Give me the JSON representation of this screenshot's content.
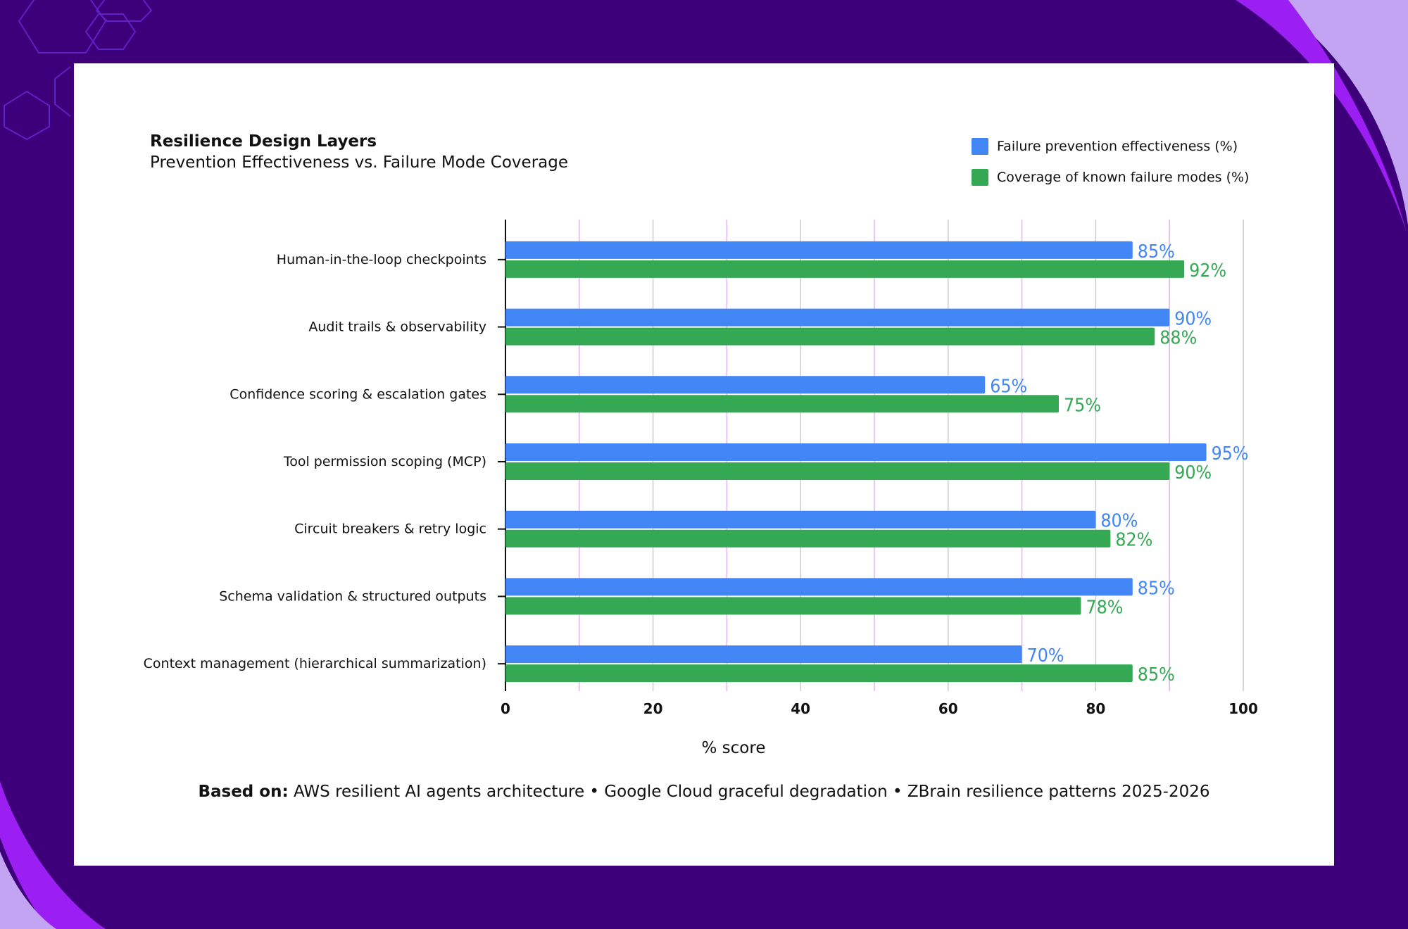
{
  "colors": {
    "background": "#3d007a",
    "accent_purple": "#9b1ff2",
    "accent_lavender": "#c3a4f2",
    "series_blue": "#4285f4",
    "series_green": "#34a853",
    "minor_grid": "#e4b3f0",
    "major_grid": "#cccccc"
  },
  "chart_data": {
    "type": "bar",
    "orientation": "horizontal",
    "title": "Resilience Design Layers",
    "subtitle": "Prevention Effectiveness vs. Failure Mode Coverage",
    "xlabel": "% score",
    "ylabel": "",
    "xlim": [
      0,
      100
    ],
    "x_ticks": [
      0,
      20,
      40,
      60,
      80,
      100
    ],
    "grid": true,
    "legend_position": "top-right",
    "value_label_suffix": "%",
    "categories": [
      "Human-in-the-loop checkpoints",
      "Audit trails & observability",
      "Confidence scoring & escalation gates",
      "Tool permission scoping (MCP)",
      "Circuit breakers & retry logic",
      "Schema validation & structured outputs",
      "Context management (hierarchical summarization)"
    ],
    "series": [
      {
        "name": "Failure prevention effectiveness (%)",
        "color": "#4285f4",
        "values": [
          85,
          90,
          65,
          95,
          80,
          85,
          70
        ]
      },
      {
        "name": "Coverage of known failure modes (%)",
        "color": "#34a853",
        "values": [
          92,
          88,
          75,
          90,
          82,
          78,
          85
        ]
      }
    ]
  },
  "footer": {
    "label": "Based on:",
    "text": "AWS resilient AI agents architecture • Google Cloud graceful degradation • ZBrain resilience patterns 2025-2026"
  }
}
